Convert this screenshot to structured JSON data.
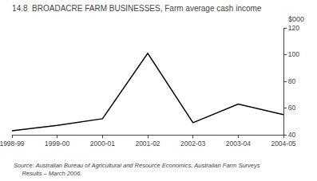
{
  "chart_data": {
    "type": "line",
    "title": "14.8  BROADACRE FARM BUSINESSES, Farm average cash income",
    "categories": [
      "1998-99",
      "1999-00",
      "2000-01",
      "2001-02",
      "2002-03",
      "2003-04",
      "2004-05"
    ],
    "values": [
      43,
      47,
      52,
      101,
      49,
      63,
      55
    ],
    "color": "#000000",
    "ylabel": "$000",
    "ylim": [
      40,
      120
    ],
    "yticks": [
      40,
      60,
      80,
      100,
      120
    ],
    "grid": false,
    "annotations": [
      "Source: Australian Bureau of Agricultural and Resource Economics, Australian Farm Surveys",
      "     Results – March 2006."
    ]
  }
}
